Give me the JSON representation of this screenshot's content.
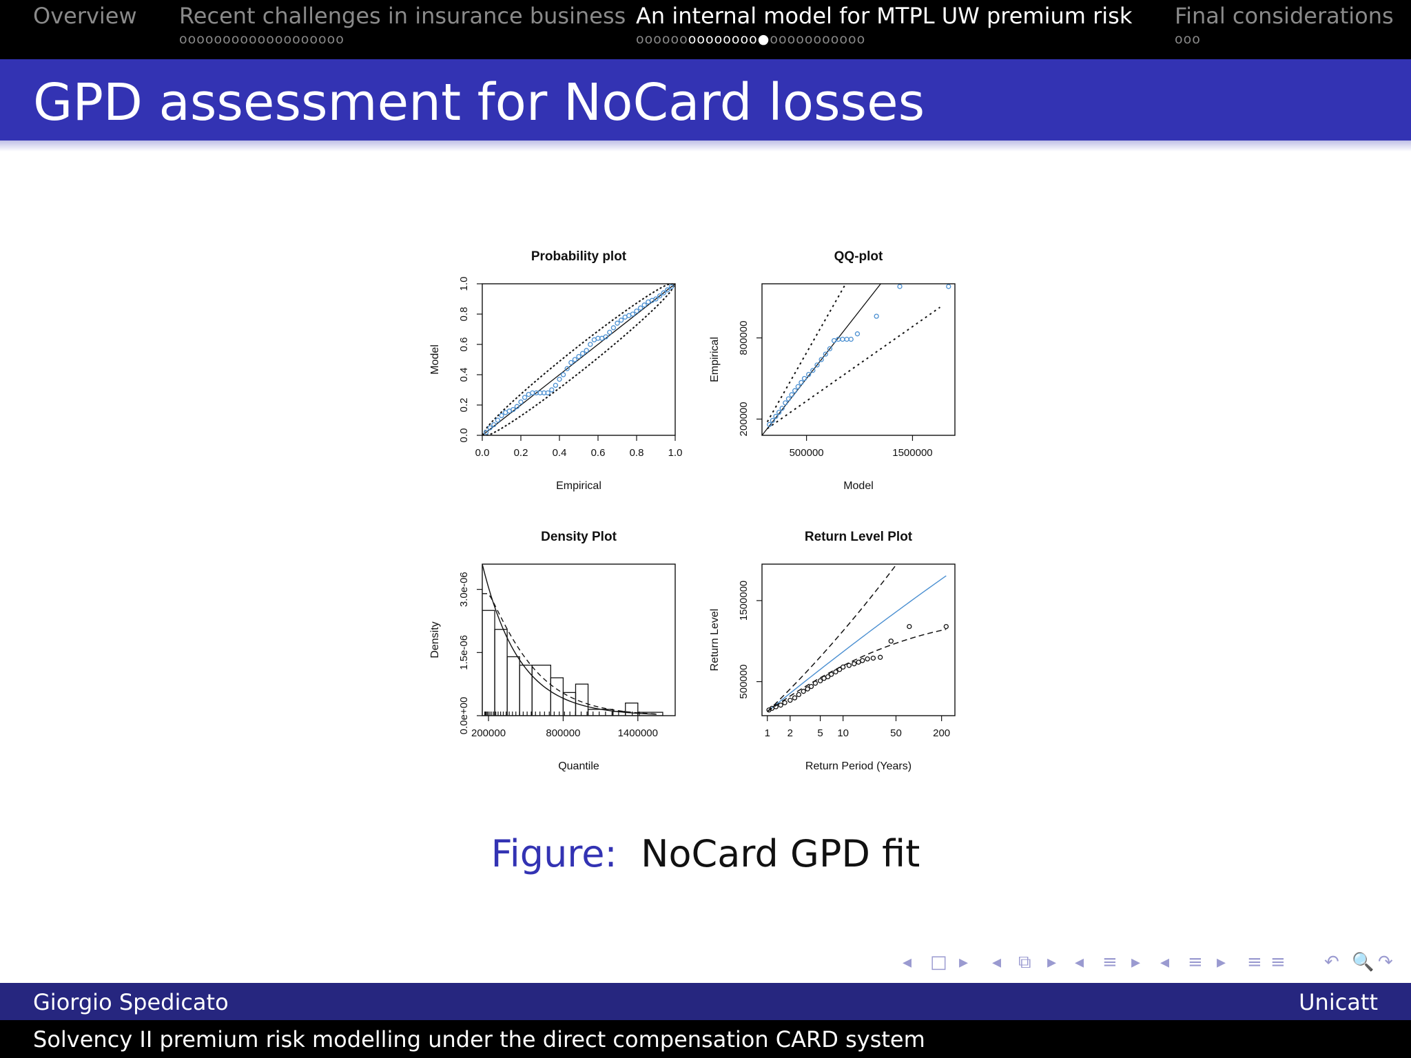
{
  "nav": {
    "sections": [
      {
        "title": "Overview",
        "dots": "",
        "state": "inactive"
      },
      {
        "title": "Recent challenges in insurance business",
        "dots": "ooooooooooooooooooo",
        "state": "inactive"
      },
      {
        "title": "An internal model for MTPL UW premium risk",
        "dots_before": "oooooo",
        "dots_current": "oooooooo●",
        "dots_after": "ooooooooooo",
        "state": "active"
      },
      {
        "title": "Final considerations",
        "dots": "ooo",
        "state": "inactive"
      }
    ]
  },
  "slide": {
    "title": "GPD assessment for NoCard losses",
    "caption_label": "Figure:",
    "caption_text": "NoCard GPD fit"
  },
  "footer": {
    "author": "Giorgio Spedicato",
    "institute": "Unicatt",
    "subtitle": "Solvency II premium risk modelling under the direct compensation CARD system"
  },
  "navsymbols": [
    "◂",
    "□",
    "▸",
    "◂",
    "⧉",
    "▸",
    "◂",
    "≡",
    "▸",
    "◂",
    "≡",
    "▸",
    "≡",
    "≡",
    "↶",
    "🔍",
    "↷"
  ],
  "colors": {
    "header_blue": "#3333b3",
    "footer_blue": "#26267f",
    "point_blue": "#4a8fd1"
  },
  "chart_data": [
    {
      "type": "scatter",
      "title": "Probability plot",
      "xlabel": "Empirical",
      "ylabel": "Model",
      "xlim": [
        0,
        1
      ],
      "ylim": [
        0,
        1
      ],
      "xticks": [
        "0.0",
        "0.2",
        "0.4",
        "0.6",
        "0.8",
        "1.0"
      ],
      "yticks": [
        "0.0",
        "0.2",
        "0.4",
        "0.6",
        "0.8",
        "1.0"
      ],
      "points": [
        [
          0.02,
          0.02
        ],
        [
          0.04,
          0.05
        ],
        [
          0.06,
          0.07
        ],
        [
          0.08,
          0.1
        ],
        [
          0.1,
          0.13
        ],
        [
          0.12,
          0.15
        ],
        [
          0.14,
          0.16
        ],
        [
          0.16,
          0.17
        ],
        [
          0.18,
          0.19
        ],
        [
          0.2,
          0.22
        ],
        [
          0.22,
          0.25
        ],
        [
          0.24,
          0.27
        ],
        [
          0.26,
          0.28
        ],
        [
          0.28,
          0.28
        ],
        [
          0.3,
          0.28
        ],
        [
          0.32,
          0.28
        ],
        [
          0.34,
          0.28
        ],
        [
          0.36,
          0.3
        ],
        [
          0.38,
          0.33
        ],
        [
          0.4,
          0.37
        ],
        [
          0.42,
          0.4
        ],
        [
          0.44,
          0.44
        ],
        [
          0.46,
          0.48
        ],
        [
          0.48,
          0.5
        ],
        [
          0.5,
          0.52
        ],
        [
          0.52,
          0.54
        ],
        [
          0.54,
          0.56
        ],
        [
          0.56,
          0.6
        ],
        [
          0.58,
          0.63
        ],
        [
          0.6,
          0.64
        ],
        [
          0.62,
          0.64
        ],
        [
          0.64,
          0.65
        ],
        [
          0.66,
          0.68
        ],
        [
          0.68,
          0.71
        ],
        [
          0.7,
          0.74
        ],
        [
          0.72,
          0.76
        ],
        [
          0.74,
          0.78
        ],
        [
          0.76,
          0.79
        ],
        [
          0.78,
          0.8
        ],
        [
          0.8,
          0.82
        ],
        [
          0.82,
          0.84
        ],
        [
          0.84,
          0.86
        ],
        [
          0.86,
          0.88
        ],
        [
          0.88,
          0.89
        ],
        [
          0.9,
          0.9
        ],
        [
          0.92,
          0.92
        ],
        [
          0.94,
          0.94
        ],
        [
          0.96,
          0.96
        ],
        [
          0.98,
          0.98
        ]
      ],
      "reference_line": "y = x",
      "confidence_bands": true
    },
    {
      "type": "scatter",
      "title": "QQ-plot",
      "xlabel": "Model",
      "ylabel": "Empirical",
      "xlim": [
        80000,
        1900000
      ],
      "ylim": [
        80000,
        1200000
      ],
      "xticks": [
        "500000",
        "1500000"
      ],
      "yticks": [
        "200000",
        "800000"
      ],
      "points": [
        [
          150000,
          160000
        ],
        [
          180000,
          190000
        ],
        [
          210000,
          220000
        ],
        [
          240000,
          250000
        ],
        [
          270000,
          280000
        ],
        [
          300000,
          320000
        ],
        [
          330000,
          350000
        ],
        [
          360000,
          380000
        ],
        [
          390000,
          410000
        ],
        [
          420000,
          440000
        ],
        [
          450000,
          470000
        ],
        [
          480000,
          500000
        ],
        [
          520000,
          530000
        ],
        [
          560000,
          560000
        ],
        [
          600000,
          600000
        ],
        [
          640000,
          640000
        ],
        [
          680000,
          680000
        ],
        [
          720000,
          720000
        ],
        [
          760000,
          780000
        ],
        [
          800000,
          790000
        ],
        [
          840000,
          790000
        ],
        [
          880000,
          790000
        ],
        [
          920000,
          790000
        ],
        [
          980000,
          830000
        ],
        [
          1160000,
          960000
        ],
        [
          1380000,
          1180000
        ],
        [
          1840000,
          1180000
        ]
      ],
      "reference_line": "y = x",
      "confidence_bands": true
    },
    {
      "type": "bar",
      "title": "Density Plot",
      "xlabel": "Quantile",
      "ylabel": "Density",
      "xlim": [
        150000,
        1700000
      ],
      "ylim": [
        0,
        3.6e-06
      ],
      "xticks": [
        "200000",
        "800000",
        "1400000"
      ],
      "yticks": [
        "0.0e+00",
        "1.5e-06",
        "3.0e-06"
      ],
      "bins": [
        {
          "from": 150000,
          "to": 250000,
          "density": 2.5e-06
        },
        {
          "from": 250000,
          "to": 350000,
          "density": 2.05e-06
        },
        {
          "from": 350000,
          "to": 450000,
          "density": 1.4e-06
        },
        {
          "from": 450000,
          "to": 550000,
          "density": 1.2e-06
        },
        {
          "from": 550000,
          "to": 700000,
          "density": 1.2e-06
        },
        {
          "from": 700000,
          "to": 800000,
          "density": 9e-07
        },
        {
          "from": 800000,
          "to": 900000,
          "density": 5.5e-07
        },
        {
          "from": 900000,
          "to": 1000000,
          "density": 7.5e-07
        },
        {
          "from": 1000000,
          "to": 1200000,
          "density": 1.5e-07
        },
        {
          "from": 1200000,
          "to": 1300000,
          "density": 1e-07
        },
        {
          "from": 1300000,
          "to": 1400000,
          "density": 3e-07
        },
        {
          "from": 1400000,
          "to": 1600000,
          "density": 8e-08
        }
      ],
      "fitted_density": true,
      "kernel_density": true
    },
    {
      "type": "scatter",
      "title": "Return Level Plot",
      "xlabel": "Return Period (Years)",
      "ylabel": "Return Level",
      "xscale": "log",
      "xlim": [
        0.85,
        300
      ],
      "ylim": [
        80000,
        1950000
      ],
      "xticks": [
        "1",
        "2",
        "5",
        "10",
        "50",
        "200"
      ],
      "yticks": [
        "500000",
        "1500000"
      ],
      "points": [
        [
          1.05,
          150000
        ],
        [
          1.15,
          170000
        ],
        [
          1.3,
          190000
        ],
        [
          1.5,
          210000
        ],
        [
          1.7,
          240000
        ],
        [
          2,
          270000
        ],
        [
          2.3,
          300000
        ],
        [
          2.6,
          340000
        ],
        [
          3,
          380000
        ],
        [
          3.4,
          410000
        ],
        [
          3.8,
          440000
        ],
        [
          4.3,
          480000
        ],
        [
          5,
          510000
        ],
        [
          5.6,
          540000
        ],
        [
          6.3,
          560000
        ],
        [
          7,
          590000
        ],
        [
          8,
          620000
        ],
        [
          9,
          650000
        ],
        [
          10,
          680000
        ],
        [
          12,
          700000
        ],
        [
          14,
          720000
        ],
        [
          16,
          740000
        ],
        [
          18,
          760000
        ],
        [
          21,
          780000
        ],
        [
          25,
          790000
        ],
        [
          31,
          800000
        ],
        [
          43,
          1000000
        ],
        [
          75,
          1180000
        ],
        [
          230,
          1180000
        ]
      ],
      "fitted_line": true,
      "confidence_bands": true
    }
  ]
}
